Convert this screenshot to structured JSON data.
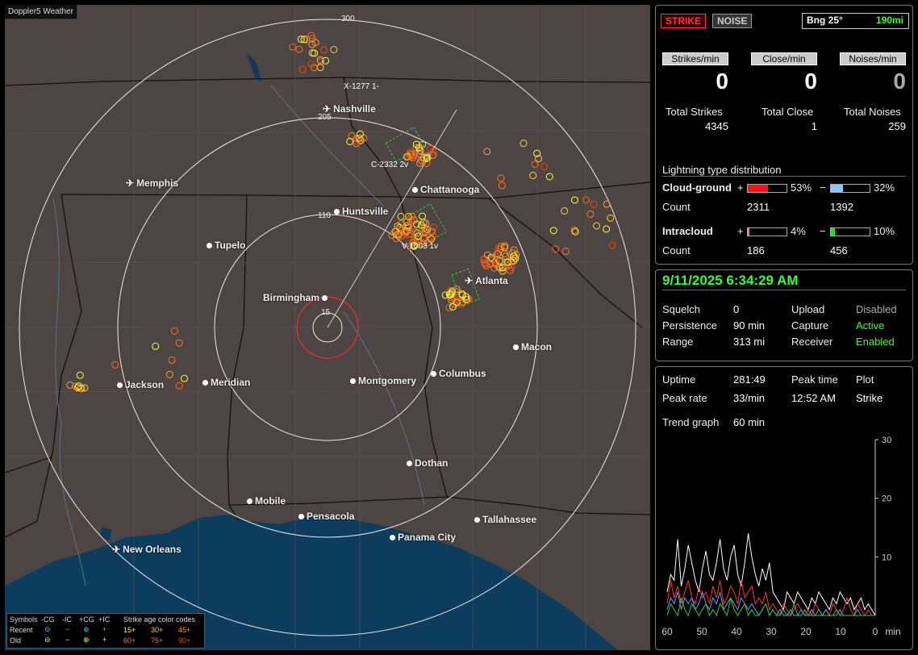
{
  "map": {
    "title": "Doppler5 Weather",
    "ring_labels": [
      "300",
      "205",
      "110",
      "15"
    ],
    "cities": [
      {
        "name": "Nashville",
        "type": "airport"
      },
      {
        "name": "Memphis",
        "type": "airport"
      },
      {
        "name": "Chattanooga",
        "type": "city"
      },
      {
        "name": "Huntsville",
        "type": "city"
      },
      {
        "name": "Tupelo",
        "type": "city"
      },
      {
        "name": "Birmingham",
        "type": "city"
      },
      {
        "name": "Atlanta",
        "type": "airport"
      },
      {
        "name": "Macon",
        "type": "city"
      },
      {
        "name": "Jackson",
        "type": "city"
      },
      {
        "name": "Meridian",
        "type": "city"
      },
      {
        "name": "Montgomery",
        "type": "city"
      },
      {
        "name": "Columbus",
        "type": "city"
      },
      {
        "name": "Dothan",
        "type": "city"
      },
      {
        "name": "Mobile",
        "type": "city"
      },
      {
        "name": "Pensacola",
        "type": "city"
      },
      {
        "name": "Tallahassee",
        "type": "city"
      },
      {
        "name": "Panama City",
        "type": "city"
      },
      {
        "name": "New Orleans",
        "type": "airport"
      }
    ],
    "storm_labels": [
      "X-1277 1-",
      "C-2332 2v",
      "V-1003 1v"
    ],
    "legend": {
      "symbols": "Symbols",
      "neg_cg": "-CG",
      "neg_ic": "-IC",
      "pos_cg": "+CG",
      "pos_ic": "+IC",
      "age_title": "Strike age color codes",
      "recent": "Recent",
      "old": "Old",
      "recent_ages": [
        "15+",
        "30+",
        "45+"
      ],
      "old_ages": [
        "60+",
        "75+",
        "90+"
      ],
      "age_colors": [
        "#ffff33",
        "#ffcc33",
        "#ff9933",
        "#ff7722",
        "#ff6622",
        "#ff4400"
      ]
    }
  },
  "status": {
    "strike_btn": "STRIKE",
    "noise_btn": "NOISE",
    "bearing": "Bng 25°",
    "distance": "190mi",
    "headers": [
      "Strikes/min",
      "Close/min",
      "Noises/min"
    ],
    "values": [
      "0",
      "0",
      "0"
    ],
    "totals_labels": [
      "Total Strikes",
      "Total Close",
      "Total Noises"
    ],
    "totals": [
      "4345",
      "1",
      "259"
    ],
    "dist_title": "Lightning type distribution",
    "cg_label": "Cloud-ground",
    "ic_label": "Intracloud",
    "count_label": "Count",
    "plus": "+",
    "minus": "−",
    "cg_pos_pct": "53%",
    "cg_pos_frac": 0.53,
    "cg_neg_pct": "32%",
    "cg_neg_frac": 0.32,
    "cg_pos_count": "2311",
    "cg_neg_count": "1392",
    "ic_pos_pct": "4%",
    "ic_pos_frac": 0.04,
    "ic_neg_pct": "10%",
    "ic_neg_frac": 0.1,
    "ic_pos_count": "186",
    "ic_neg_count": "456"
  },
  "settings": {
    "datetime": "9/11/2025 6:34:29 AM",
    "squelch_label": "Squelch",
    "squelch": "0",
    "persistence_label": "Persistence",
    "persistence": "90 min",
    "range_label": "Range",
    "range": "313 mi",
    "upload_label": "Upload",
    "upload": "Disabled",
    "capture_label": "Capture",
    "capture": "Active",
    "receiver_label": "Receiver",
    "receiver": "Enabled"
  },
  "stats": {
    "uptime_label": "Uptime",
    "uptime": "281:49",
    "peak_time_label": "Peak time",
    "plot_label": "Plot",
    "peak_rate_label": "Peak rate",
    "peak_rate": "33/min",
    "peak_time": "12:52 AM",
    "plot": "Strike",
    "trend_label": "Trend graph",
    "trend": "60 min"
  },
  "chart_data": {
    "type": "line",
    "x_ticks": [
      "60",
      "50",
      "40",
      "30",
      "20",
      "10",
      "0",
      "min"
    ],
    "y_ticks": [
      "30",
      "20",
      "10"
    ],
    "xlim": [
      60,
      0
    ],
    "ylim": [
      0,
      30
    ],
    "series": [
      {
        "color": "#ffffff",
        "values": [
          4,
          7,
          6,
          13,
          5,
          8,
          12,
          9,
          6,
          4,
          8,
          11,
          7,
          6,
          9,
          13,
          8,
          6,
          10,
          12,
          7,
          5,
          9,
          14,
          10,
          7,
          5,
          8,
          6,
          9,
          4,
          3,
          2,
          1,
          4,
          3,
          2,
          4,
          3,
          2,
          1,
          3,
          2,
          4,
          3,
          2,
          1,
          3,
          2,
          4,
          3,
          2,
          3,
          1,
          2,
          3,
          1,
          2,
          1,
          0
        ]
      },
      {
        "color": "#ff3333",
        "values": [
          2,
          6,
          3,
          5,
          2,
          4,
          6,
          3,
          2,
          5,
          3,
          4,
          2,
          5,
          3,
          6,
          2,
          3,
          5,
          4,
          2,
          6,
          3,
          4,
          5,
          2,
          3,
          2,
          4,
          1,
          2,
          1,
          0,
          2,
          1,
          0,
          1,
          2,
          1,
          0,
          1,
          0,
          2,
          1,
          0,
          1,
          0,
          2,
          1,
          0,
          1,
          3,
          1,
          0,
          2,
          1,
          0,
          1,
          0,
          0
        ]
      },
      {
        "color": "#6699ff",
        "values": [
          1,
          3,
          2,
          4,
          1,
          3,
          2,
          3,
          1,
          2,
          4,
          2,
          1,
          3,
          2,
          4,
          1,
          2,
          3,
          2,
          1,
          3,
          2,
          1,
          2,
          1,
          0,
          1,
          2,
          0,
          1,
          0,
          1,
          0,
          0,
          1,
          0,
          0,
          1,
          0,
          0,
          1,
          0,
          0,
          0,
          1,
          0,
          0,
          0,
          1,
          0,
          0,
          0,
          0,
          1,
          0,
          0,
          0,
          0,
          0
        ]
      },
      {
        "color": "#33cc33",
        "values": [
          0,
          2,
          1,
          0,
          3,
          1,
          0,
          2,
          1,
          0,
          1,
          2,
          0,
          1,
          0,
          2,
          1,
          0,
          3,
          1,
          0,
          1,
          2,
          0,
          1,
          0,
          0,
          1,
          2,
          0,
          1,
          0,
          0,
          1,
          0,
          0,
          2,
          0,
          0,
          1,
          0,
          0,
          0,
          1,
          0,
          0,
          0,
          0,
          1,
          0,
          0,
          0,
          0,
          0,
          0,
          0,
          0,
          0,
          0,
          0
        ]
      }
    ]
  }
}
